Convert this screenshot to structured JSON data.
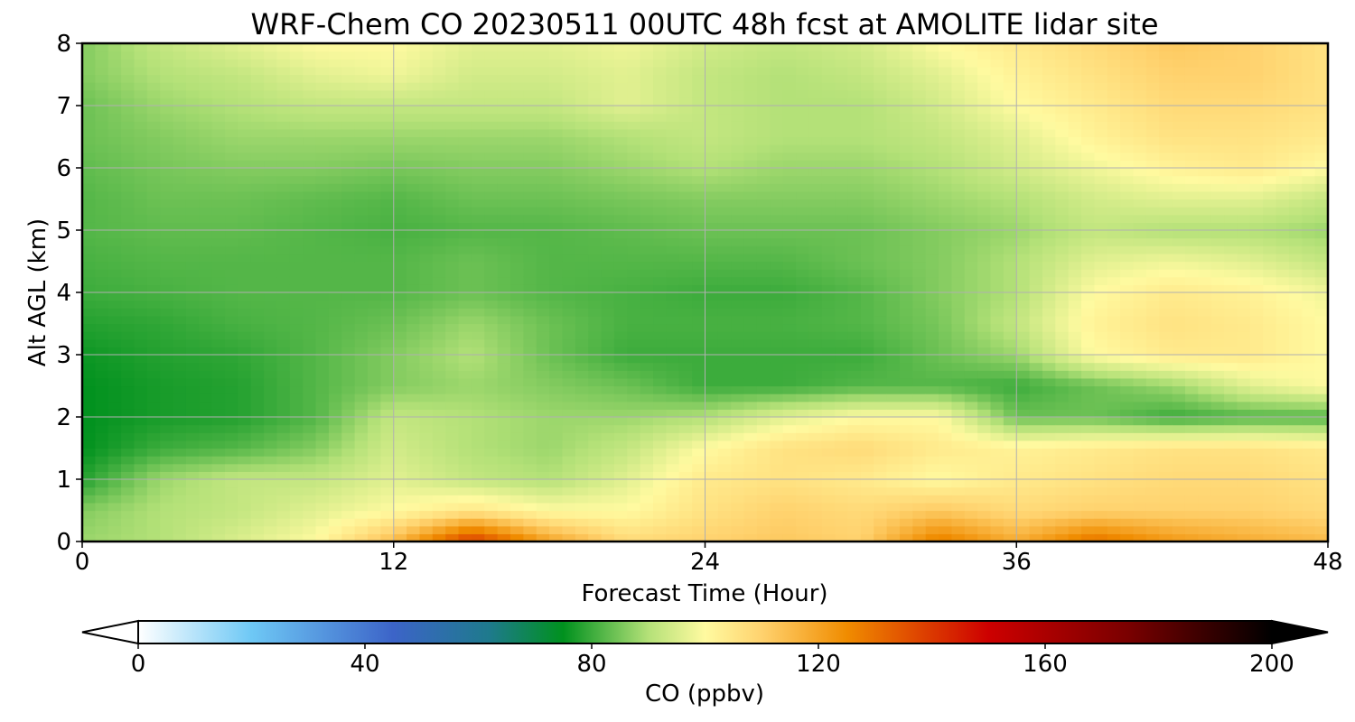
{
  "chart_data": {
    "type": "heatmap",
    "title": "WRF-Chem CO  20230511 00UTC 48h fcst at AMOLITE lidar site",
    "xlabel": "Forecast Time (Hour)",
    "ylabel": "Alt AGL (km)",
    "xlim": [
      0,
      48
    ],
    "ylim": [
      0,
      8
    ],
    "x_ticks": [
      "0",
      "12",
      "24",
      "36",
      "48"
    ],
    "y_ticks": [
      "0",
      "1",
      "2",
      "3",
      "4",
      "5",
      "6",
      "7",
      "8"
    ],
    "grid": true,
    "colorbar": {
      "label": "CO  (ppbv)",
      "range": [
        0,
        200
      ],
      "ticks": [
        "0",
        "40",
        "80",
        "120",
        "160",
        "200"
      ],
      "extend": "both",
      "stops": [
        {
          "v": 0,
          "color": "#ffffff"
        },
        {
          "v": 20,
          "color": "#6ec8f5"
        },
        {
          "v": 45,
          "color": "#3c64c8"
        },
        {
          "v": 62,
          "color": "#1e7a8c"
        },
        {
          "v": 75,
          "color": "#00911e"
        },
        {
          "v": 90,
          "color": "#b4e178"
        },
        {
          "v": 100,
          "color": "#fffaa0"
        },
        {
          "v": 110,
          "color": "#ffd26e"
        },
        {
          "v": 125,
          "color": "#f08c00"
        },
        {
          "v": 150,
          "color": "#cd0000"
        },
        {
          "v": 175,
          "color": "#780000"
        },
        {
          "v": 200,
          "color": "#000000"
        }
      ]
    },
    "x_hours": [
      0,
      3,
      6,
      9,
      12,
      15,
      18,
      21,
      24,
      27,
      30,
      33,
      36,
      39,
      42,
      45,
      48
    ],
    "y_km": [
      0,
      0.5,
      1,
      1.5,
      2,
      2.5,
      3,
      3.5,
      4,
      4.5,
      5,
      5.5,
      6,
      6.5,
      7,
      7.5,
      8
    ],
    "z_ppbv": [
      [
        88,
        90,
        95,
        100,
        115,
        140,
        120,
        108,
        110,
        112,
        110,
        128,
        118,
        130,
        122,
        118,
        115
      ],
      [
        86,
        90,
        92,
        96,
        100,
        105,
        100,
        100,
        106,
        110,
        108,
        112,
        108,
        110,
        110,
        110,
        108
      ],
      [
        78,
        88,
        92,
        92,
        96,
        92,
        90,
        96,
        104,
        106,
        104,
        100,
        104,
        106,
        108,
        108,
        106
      ],
      [
        75,
        80,
        82,
        86,
        94,
        90,
        88,
        92,
        100,
        106,
        108,
        104,
        102,
        104,
        106,
        106,
        104
      ],
      [
        75,
        77,
        78,
        82,
        92,
        90,
        88,
        88,
        90,
        96,
        100,
        100,
        84,
        84,
        80,
        82,
        82
      ],
      [
        75,
        77,
        78,
        82,
        86,
        88,
        86,
        84,
        80,
        80,
        82,
        82,
        80,
        84,
        88,
        96,
        100
      ],
      [
        76,
        78,
        79,
        82,
        86,
        90,
        84,
        80,
        80,
        80,
        80,
        84,
        88,
        100,
        104,
        104,
        100
      ],
      [
        78,
        79,
        81,
        82,
        84,
        88,
        84,
        81,
        81,
        81,
        82,
        85,
        92,
        102,
        106,
        104,
        100
      ],
      [
        80,
        81,
        82,
        82,
        82,
        84,
        82,
        81,
        80,
        80,
        82,
        86,
        90,
        100,
        104,
        102,
        98
      ],
      [
        81,
        82,
        82,
        82,
        82,
        84,
        82,
        82,
        82,
        82,
        84,
        86,
        90,
        96,
        98,
        96,
        92
      ],
      [
        82,
        83,
        83,
        82,
        81,
        82,
        82,
        83,
        84,
        84,
        84,
        86,
        88,
        92,
        90,
        90,
        88
      ],
      [
        82,
        84,
        84,
        83,
        82,
        84,
        84,
        85,
        86,
        86,
        86,
        88,
        90,
        94,
        96,
        96,
        92
      ],
      [
        83,
        85,
        86,
        86,
        85,
        86,
        86,
        88,
        90,
        88,
        88,
        90,
        94,
        98,
        102,
        104,
        100
      ],
      [
        84,
        86,
        88,
        88,
        88,
        88,
        88,
        90,
        92,
        90,
        90,
        92,
        96,
        102,
        106,
        106,
        104
      ],
      [
        84,
        88,
        90,
        92,
        92,
        92,
        92,
        96,
        92,
        90,
        90,
        94,
        100,
        104,
        108,
        108,
        106
      ],
      [
        86,
        90,
        92,
        96,
        98,
        94,
        94,
        96,
        92,
        90,
        92,
        96,
        102,
        106,
        110,
        110,
        106
      ],
      [
        86,
        92,
        96,
        100,
        100,
        96,
        96,
        98,
        94,
        92,
        94,
        100,
        104,
        108,
        112,
        110,
        106
      ]
    ]
  }
}
